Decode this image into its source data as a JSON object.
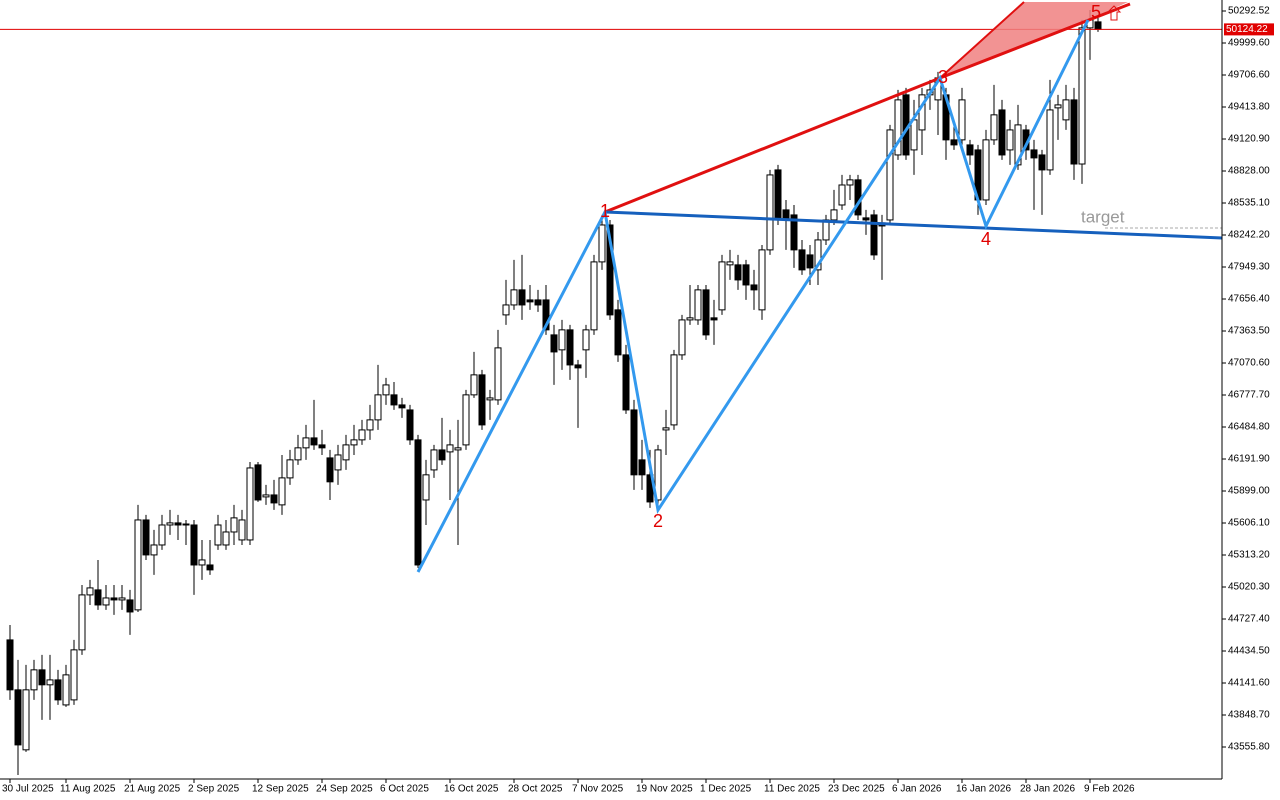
{
  "chart_data": {
    "type": "candlestick",
    "categories": [
      "30 Jul 2025",
      null,
      null,
      null,
      null,
      null,
      null,
      "11 Aug 2025",
      null,
      null,
      null,
      null,
      null,
      null,
      null,
      "21 Aug 2025",
      null,
      null,
      null,
      null,
      null,
      null,
      null,
      "2 Sep 2025",
      null,
      null,
      null,
      null,
      null,
      null,
      null,
      "12 Sep 2025",
      null,
      null,
      null,
      null,
      null,
      null,
      null,
      "24 Sep 2025",
      null,
      null,
      null,
      null,
      null,
      null,
      null,
      "6 Oct 2025",
      null,
      null,
      null,
      null,
      null,
      null,
      null,
      "16 Oct 2025",
      null,
      null,
      null,
      null,
      null,
      null,
      null,
      "28 Oct 2025",
      null,
      null,
      null,
      null,
      null,
      null,
      null,
      "7 Nov 2025",
      null,
      null,
      null,
      null,
      null,
      null,
      null,
      "19 Nov 2025",
      null,
      null,
      null,
      null,
      null,
      null,
      null,
      "1 Dec 2025",
      null,
      null,
      null,
      null,
      null,
      null,
      null,
      "11 Dec 2025",
      null,
      null,
      null,
      null,
      null,
      null,
      null,
      "23 Dec 2025",
      null,
      null,
      null,
      null,
      null,
      null,
      null,
      "6 Jan 2026",
      null,
      null,
      null,
      null,
      null,
      null,
      null,
      "16 Jan 2026",
      null,
      null,
      null,
      null,
      null,
      null,
      null,
      "28 Jan 2026",
      null,
      null,
      null,
      null,
      null,
      null,
      null,
      "9 Feb 2026",
      null
    ],
    "open": [
      44536,
      44079,
      43530,
      44079,
      44262,
      44125,
      44170,
      43941,
      43987,
      44445,
      44948,
      44994,
      44856,
      44920,
      44902,
      44902,
      44811,
      45634,
      45314,
      45405,
      45588,
      45607,
      45588,
      45588,
      45222,
      45222,
      45405,
      45405,
      45524,
      45451,
      45451,
      46138,
      45845,
      45863,
      45772,
      46019,
      46184,
      46294,
      46385,
      46321,
      46202,
      46092,
      46184,
      46321,
      46367,
      46458,
      46550,
      46779,
      46779,
      46687,
      46641,
      46367,
      45817,
      46092,
      46275,
      46257,
      46275,
      46321,
      46779,
      46962,
      46733,
      46733,
      47511,
      47602,
      47740,
      47648,
      47648,
      47648,
      47328,
      47191,
      47374,
      47053,
      47191,
      47374,
      47996,
      48334,
      47557,
      47145,
      46641,
      46184,
      46047,
      45817,
      46458,
      46504,
      47145,
      47465,
      47465,
      47740,
      47484,
      47557,
      47969,
      47969,
      47969,
      47785,
      47557,
      48106,
      48838,
      48472,
      48426,
      48106,
      48060,
      47923,
      48197,
      48380,
      48517,
      48700,
      48747,
      48399,
      48426,
      48353,
      48380,
      48975,
      49525,
      49021,
      49204,
      49525,
      49479,
      49525,
      49113,
      49113,
      49067,
      49021,
      48563,
      49113,
      49387,
      49021,
      48884,
      49204,
      49021,
      48975,
      48838,
      49406,
      49296,
      49479,
      48892,
      50138,
      50193
    ],
    "high": [
      44673,
      44353,
      44308,
      44353,
      44399,
      44399,
      44262,
      44308,
      44536,
      45039,
      45085,
      45268,
      45039,
      45039,
      45039,
      44994,
      45772,
      45680,
      45543,
      45680,
      45726,
      45680,
      45634,
      45634,
      45451,
      45451,
      45680,
      45634,
      45772,
      45726,
      46165,
      46165,
      45955,
      46001,
      46229,
      46275,
      46413,
      46504,
      46733,
      46458,
      46275,
      46321,
      46413,
      46504,
      46550,
      46687,
      47053,
      46935,
      46897,
      46751,
      46687,
      46413,
      46184,
      46321,
      46568,
      46458,
      46550,
      46825,
      47172,
      47008,
      46825,
      47374,
      47831,
      48014,
      48060,
      47785,
      47740,
      47785,
      47420,
      47465,
      47420,
      47099,
      47420,
      48060,
      48426,
      48380,
      47648,
      47237,
      46733,
      46367,
      46275,
      46321,
      46641,
      47191,
      47511,
      47785,
      47785,
      47785,
      47648,
      48060,
      48106,
      48060,
      48014,
      47923,
      48151,
      48838,
      48884,
      48563,
      48517,
      48197,
      48151,
      48270,
      48426,
      48655,
      48792,
      48792,
      48792,
      48472,
      48472,
      48426,
      49250,
      49570,
      49589,
      49479,
      49589,
      49662,
      49735,
      49589,
      49296,
      49589,
      49113,
      49067,
      49204,
      49616,
      49479,
      49296,
      49433,
      49250,
      49113,
      49021,
      49662,
      49525,
      49616,
      49589,
      50211,
      50302,
      50229
    ],
    "low": [
      43987,
      43300,
      43511,
      43987,
      43804,
      43804,
      43941,
      43923,
      43941,
      44399,
      44856,
      44811,
      44811,
      44765,
      44811,
      44582,
      44792,
      45268,
      45131,
      45360,
      45497,
      45451,
      45405,
      44948,
      45085,
      45131,
      45360,
      45360,
      45405,
      45405,
      45405,
      45799,
      45772,
      45726,
      45680,
      45955,
      46138,
      46184,
      46275,
      46229,
      45817,
      45955,
      46092,
      46229,
      46321,
      46367,
      46458,
      46687,
      46641,
      46568,
      46321,
      45195,
      45588,
      46019,
      46138,
      45817,
      45405,
      46275,
      46751,
      46458,
      46550,
      46687,
      47420,
      47557,
      47465,
      47557,
      47539,
      47328,
      46870,
      47008,
      46916,
      46477,
      46935,
      47328,
      47923,
      47465,
      47081,
      46605,
      45909,
      45909,
      45744,
      45772,
      46229,
      46458,
      47099,
      47420,
      47420,
      47282,
      47237,
      47511,
      47831,
      47740,
      47648,
      47557,
      47465,
      48060,
      48334,
      48106,
      47941,
      47877,
      47785,
      47785,
      48151,
      48334,
      48472,
      48563,
      48380,
      48243,
      48014,
      47831,
      48334,
      48930,
      48930,
      48792,
      48975,
      49387,
      49158,
      48930,
      49021,
      49067,
      48884,
      48426,
      48517,
      49067,
      48930,
      48884,
      48838,
      48930,
      48472,
      48426,
      48792,
      49113,
      49204,
      48747,
      48710,
      49845,
      50102
    ],
    "close": [
      44079,
      43575,
      44079,
      44262,
      44125,
      44170,
      43987,
      44216,
      44445,
      44948,
      45012,
      44856,
      44920,
      44902,
      44920,
      44792,
      45634,
      45314,
      45405,
      45588,
      45607,
      45588,
      45597,
      45222,
      45268,
      45177,
      45588,
      45524,
      45653,
      45634,
      46110,
      45817,
      45863,
      45790,
      46019,
      46184,
      46294,
      46385,
      46321,
      46294,
      45983,
      46229,
      46321,
      46367,
      46458,
      46550,
      46779,
      46870,
      46687,
      46660,
      46367,
      45222,
      46047,
      46275,
      46184,
      46321,
      46294,
      46779,
      46962,
      46504,
      46751,
      47209,
      47602,
      47740,
      47602,
      47630,
      47602,
      47374,
      47172,
      47374,
      47053,
      47026,
      47374,
      47996,
      48334,
      47511,
      47145,
      46641,
      46047,
      46047,
      45799,
      46275,
      46477,
      47145,
      47465,
      47484,
      47740,
      47328,
      47465,
      47996,
      47996,
      47831,
      47785,
      47740,
      48106,
      48792,
      48380,
      48380,
      48106,
      47923,
      47941,
      48197,
      48380,
      48472,
      48700,
      48747,
      48426,
      48380,
      48060,
      48325,
      49204,
      49479,
      48975,
      49296,
      49525,
      49570,
      49680,
      49113,
      49067,
      49479,
      48975,
      48563,
      49113,
      49342,
      48975,
      49204,
      49250,
      49021,
      48948,
      48838,
      49387,
      49433,
      49479,
      48892,
      50138,
      50211,
      50124.22
    ],
    "ylim": [
      43262.9,
      50393.2
    ],
    "yticks": [
      50292.52,
      {
        "value": 49999.6,
        "label": "49999.60"
      },
      {
        "value": 49706.6,
        "label": "49706.60"
      },
      {
        "value": 49413.8,
        "label": "49413.80"
      },
      {
        "value": 49120.9,
        "label": "49120.90"
      },
      {
        "value": 48828,
        "label": "48828.00"
      },
      {
        "value": 48535.1,
        "label": "48535.10"
      },
      {
        "value": 48242.2,
        "label": "48242.20"
      },
      {
        "value": 47949.3,
        "label": "47949.30"
      },
      {
        "value": 47656.4,
        "label": "47656.40"
      },
      {
        "value": 47363.5,
        "label": "47363.50"
      },
      {
        "value": 47070.6,
        "label": "47070.60"
      },
      {
        "value": 46777.7,
        "label": "46777.70"
      },
      {
        "value": 46484.8,
        "label": "46484.80"
      },
      {
        "value": 46191.9,
        "label": "46191.90"
      },
      {
        "value": 45899,
        "label": "45899.00"
      },
      {
        "value": 45606.1,
        "label": "45606.10"
      },
      {
        "value": 45313.2,
        "label": "45313.20"
      },
      {
        "value": 45020.3,
        "label": "45020.30"
      },
      {
        "value": 44727.4,
        "label": "44727.40"
      },
      {
        "value": 44434.5,
        "label": "44434.50"
      },
      {
        "value": 44141.6,
        "label": "44141.60"
      },
      {
        "value": 43848.7,
        "label": "43848.70"
      },
      {
        "value": 43555.8,
        "label": "43555.80"
      }
    ],
    "up_color": "#ffffff",
    "down_color": "#000000",
    "price_line_color": "#e00000",
    "annotations": {
      "wave_labels": [
        "1",
        "2",
        "3",
        "4",
        "5"
      ],
      "target": "target"
    }
  }
}
